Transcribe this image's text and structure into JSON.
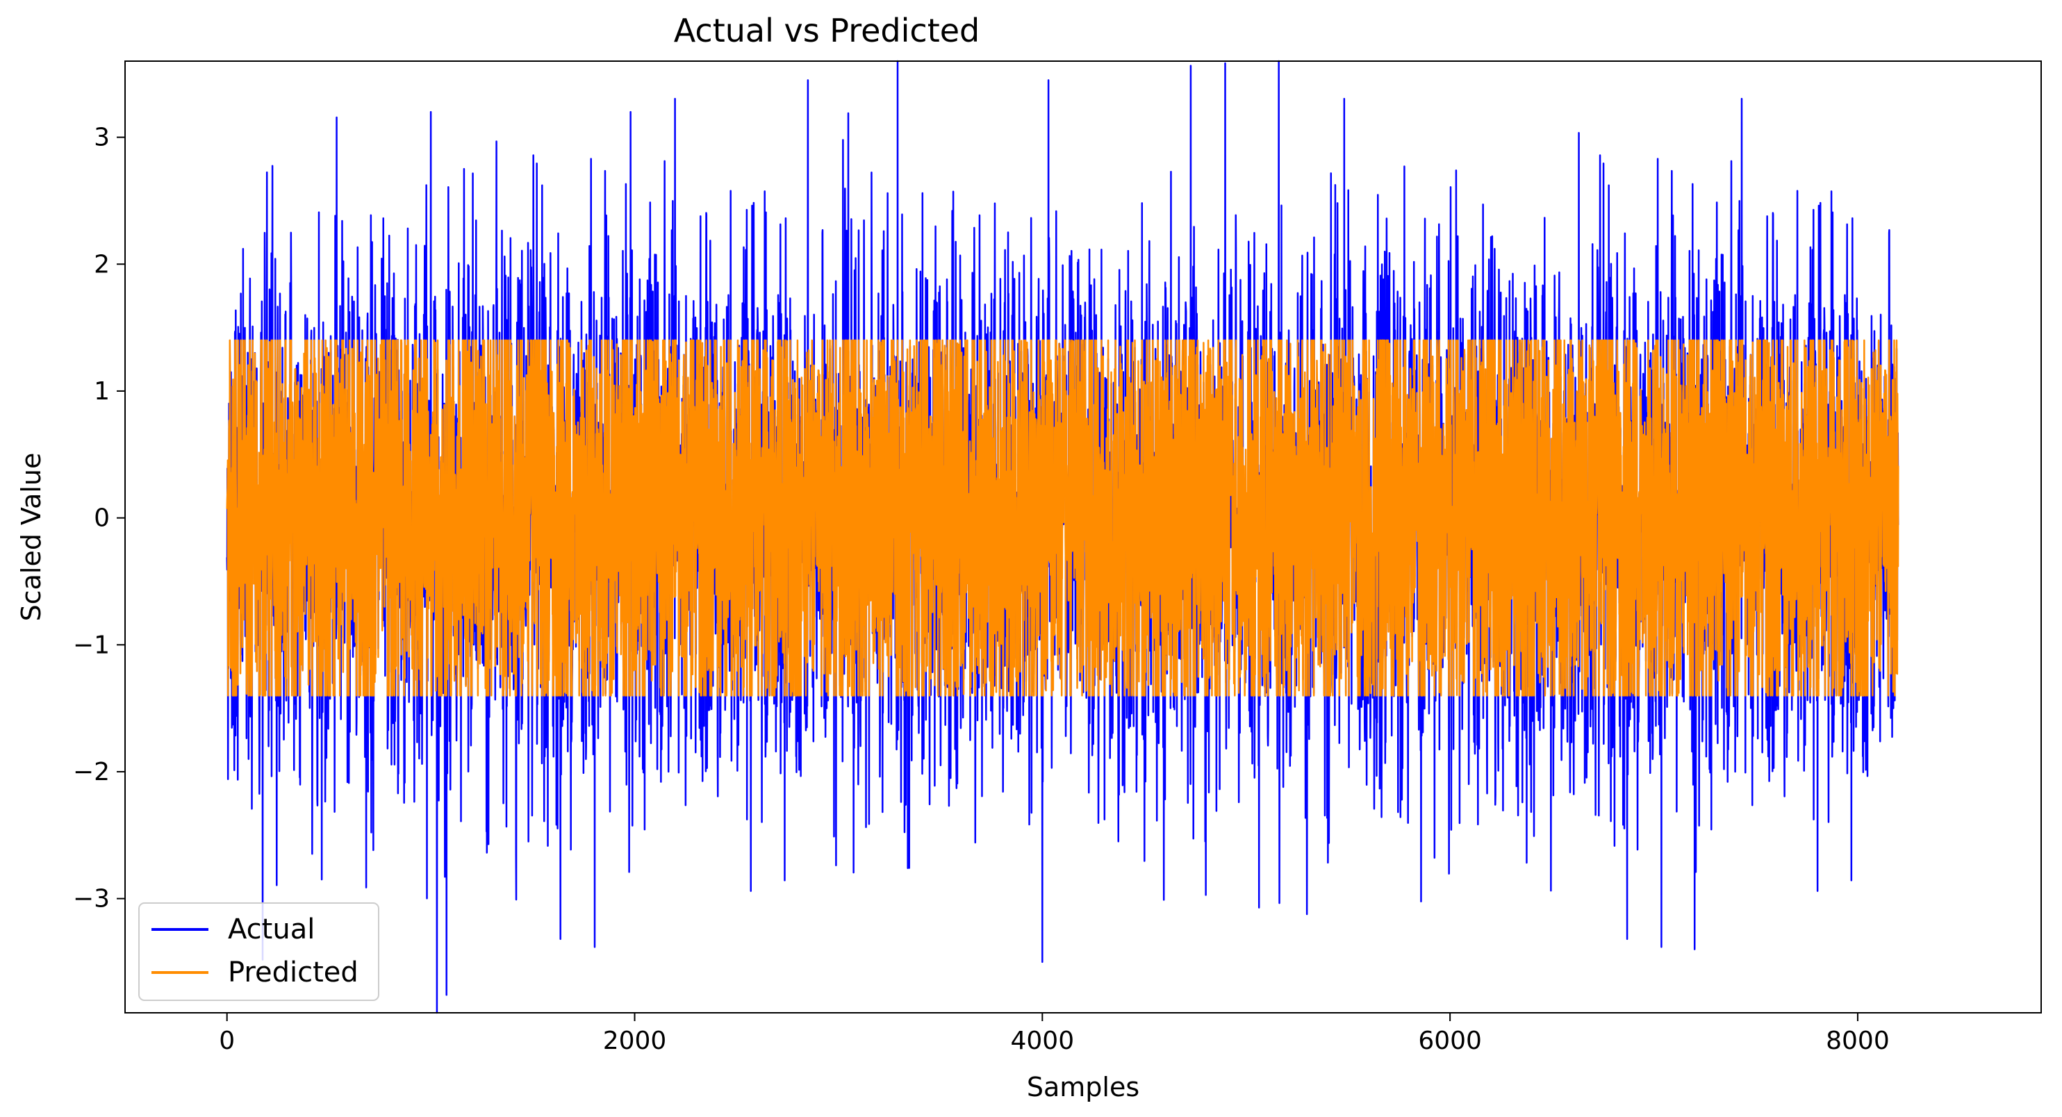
{
  "chart_data": {
    "type": "line",
    "title": "Actual vs Predicted",
    "xlabel": "Samples",
    "ylabel": "Scaled Value",
    "xlim": [
      -500,
      8900
    ],
    "ylim": [
      -3.9,
      3.6
    ],
    "xticks": [
      0,
      2000,
      4000,
      6000,
      8000
    ],
    "xtick_labels": [
      "0",
      "2000",
      "4000",
      "6000",
      "8000"
    ],
    "yticks": [
      -3,
      -2,
      -1,
      0,
      1,
      2,
      3
    ],
    "ytick_labels": [
      "−3",
      "−2",
      "−1",
      "0",
      "1",
      "2",
      "3"
    ],
    "grid": false,
    "legend_position": "lower-left",
    "n_samples": 8200,
    "series": [
      {
        "name": "Actual",
        "color": "#0000ff",
        "range": [
          -3.9,
          3.6
        ],
        "typical_band": [
          -1.45,
          1.45
        ],
        "notable_points": [
          {
            "x": 1030,
            "y": -3.9
          },
          {
            "x": 4000,
            "y": -3.5
          },
          {
            "x": 5160,
            "y": 3.6
          },
          {
            "x": 2850,
            "y": 3.45
          },
          {
            "x": 4030,
            "y": 3.45
          },
          {
            "x": 1000,
            "y": 3.2
          },
          {
            "x": 1980,
            "y": 3.2
          },
          {
            "x": 7200,
            "y": -3.4
          }
        ]
      },
      {
        "name": "Predicted",
        "color": "#ff8c00",
        "range": [
          -1.5,
          1.5
        ],
        "typical_band": [
          -1.45,
          1.45
        ]
      }
    ]
  }
}
